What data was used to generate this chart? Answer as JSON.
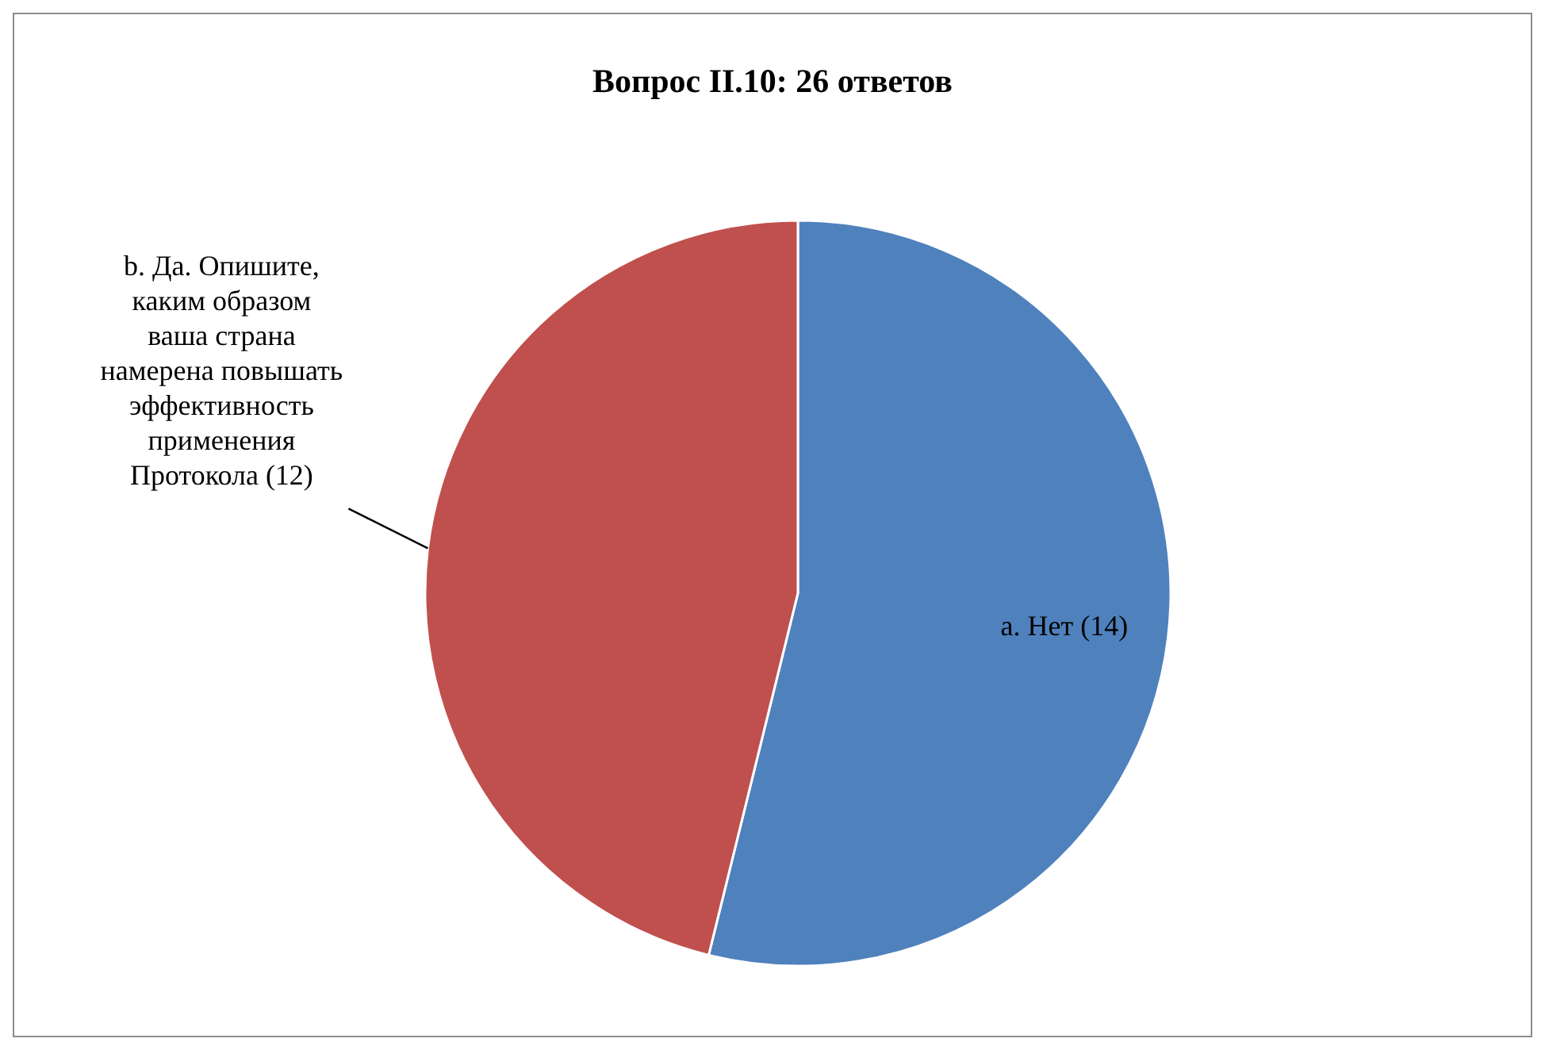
{
  "chart_data": {
    "type": "pie",
    "title": "Вопрос II.10: 26 ответов",
    "categories": [
      "a. Нет (14)",
      "b. Да. Опишите, каким образом ваша страна намерена повышать эффективность применения Протокола (12)"
    ],
    "values": [
      14,
      12
    ],
    "colors": [
      "#4f81bd",
      "#c0504d"
    ],
    "legend": false
  }
}
